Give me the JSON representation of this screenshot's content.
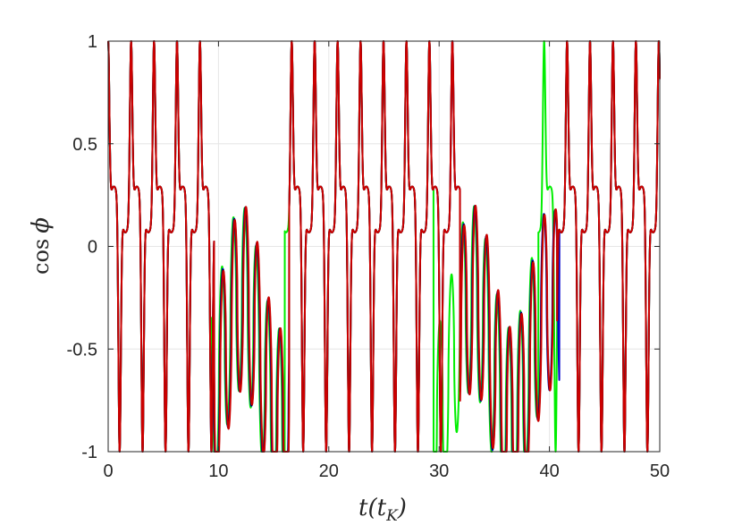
{
  "chart_data": {
    "type": "line",
    "xlim": [
      0,
      50
    ],
    "ylim": [
      -1,
      1
    ],
    "x_ticks": [
      0,
      10,
      20,
      30,
      40,
      50
    ],
    "y_ticks": [
      -1,
      -0.5,
      0,
      0.5,
      1
    ],
    "x_tick_labels": [
      "0",
      "10",
      "20",
      "30",
      "40",
      "50"
    ],
    "y_tick_labels": [
      "-1",
      "-0.5",
      "0",
      "0.5",
      "1"
    ],
    "xlabel": {
      "main": "t(t",
      "sub": "K",
      "close": ")"
    },
    "ylabel": {
      "fn": "cos",
      "var": "ϕ"
    },
    "grid": true,
    "legend": "none",
    "main_period": 2.08,
    "main_phase": 0.0,
    "plateau_intervals": [
      [
        9.6,
        16.4
      ],
      [
        31.9,
        40.7
      ]
    ],
    "series": [
      {
        "color": "#00ee00",
        "plateau_intervals": [
          [
            9.3,
            16.0
          ],
          [
            29.5,
            39.0
          ]
        ],
        "offset": 0.15
      },
      {
        "color": "#0000cc",
        "plateau_intervals": [
          [
            9.6,
            16.4
          ],
          [
            31.9,
            40.9
          ]
        ],
        "offset": 0.05
      },
      {
        "color": "#000000",
        "plateau_intervals": [
          [
            9.6,
            16.4
          ],
          [
            31.9,
            40.7
          ]
        ],
        "offset": 0.0
      },
      {
        "color": "#cc0000",
        "plateau_intervals": [
          [
            9.6,
            16.4
          ],
          [
            31.9,
            40.7
          ]
        ],
        "offset": -0.03
      }
    ]
  }
}
